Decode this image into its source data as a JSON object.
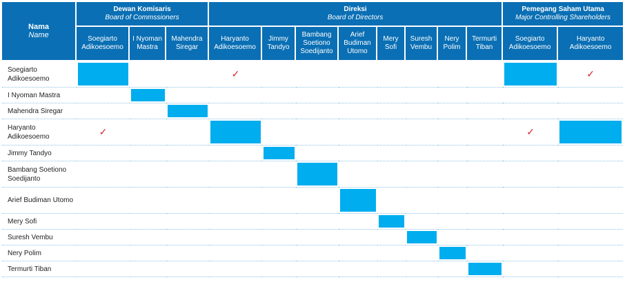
{
  "header": {
    "name": {
      "title": "Nama",
      "subtitle": "Name"
    },
    "groups": [
      {
        "title": "Dewan Komisaris",
        "subtitle": "Board of Commssioners"
      },
      {
        "title": "Direksi",
        "subtitle": "Board of Directors"
      },
      {
        "title": "Pemegang Saham Utama",
        "subtitle": "Major Controlling Shareholders"
      }
    ],
    "columns": [
      "Soegiarto Adikoesoemo",
      "I Nyoman Mastra",
      "Mahendra Siregar",
      "Haryanto Adikoesoemo",
      "Jimmy Tandyo",
      "Bambang Soetiono Soedijanto",
      "Arief Budiman Utomo",
      "Mery Sofi",
      "Suresh Vembu",
      "Nery Polim",
      "Termurti Tiban",
      "Soegiarto Adikoesoemo",
      "Haryanto Adikoesoemo"
    ]
  },
  "rows": [
    {
      "name": "Soegiarto Adikoesoemo",
      "self": 0,
      "checks": [
        3,
        12
      ],
      "self_extra": [
        11
      ]
    },
    {
      "name": "I Nyoman Mastra",
      "self": 1,
      "checks": [],
      "self_extra": []
    },
    {
      "name": "Mahendra Siregar",
      "self": 2,
      "checks": [],
      "self_extra": []
    },
    {
      "name": "Haryanto Adikoesoemo",
      "self": 3,
      "checks": [
        0,
        11
      ],
      "self_extra": [
        12
      ]
    },
    {
      "name": "Jimmy Tandyo",
      "self": 4,
      "checks": [],
      "self_extra": []
    },
    {
      "name": "Bambang Soetiono Soedijanto",
      "self": 5,
      "checks": [],
      "self_extra": []
    },
    {
      "name": "Arief Budiman Utomo",
      "self": 6,
      "checks": [],
      "self_extra": []
    },
    {
      "name": "Mery Sofi",
      "self": 7,
      "checks": [],
      "self_extra": []
    },
    {
      "name": "Suresh Vembu",
      "self": 8,
      "checks": [],
      "self_extra": []
    },
    {
      "name": "Nery Polim",
      "self": 9,
      "checks": [],
      "self_extra": []
    },
    {
      "name": "Termurti Tiban",
      "self": 10,
      "checks": [],
      "self_extra": []
    }
  ],
  "check_symbol": "✓",
  "colors": {
    "header": "#0a6fb4",
    "highlight": "#00adef",
    "check": "#d7262d",
    "divider": "#8dc1e3"
  }
}
